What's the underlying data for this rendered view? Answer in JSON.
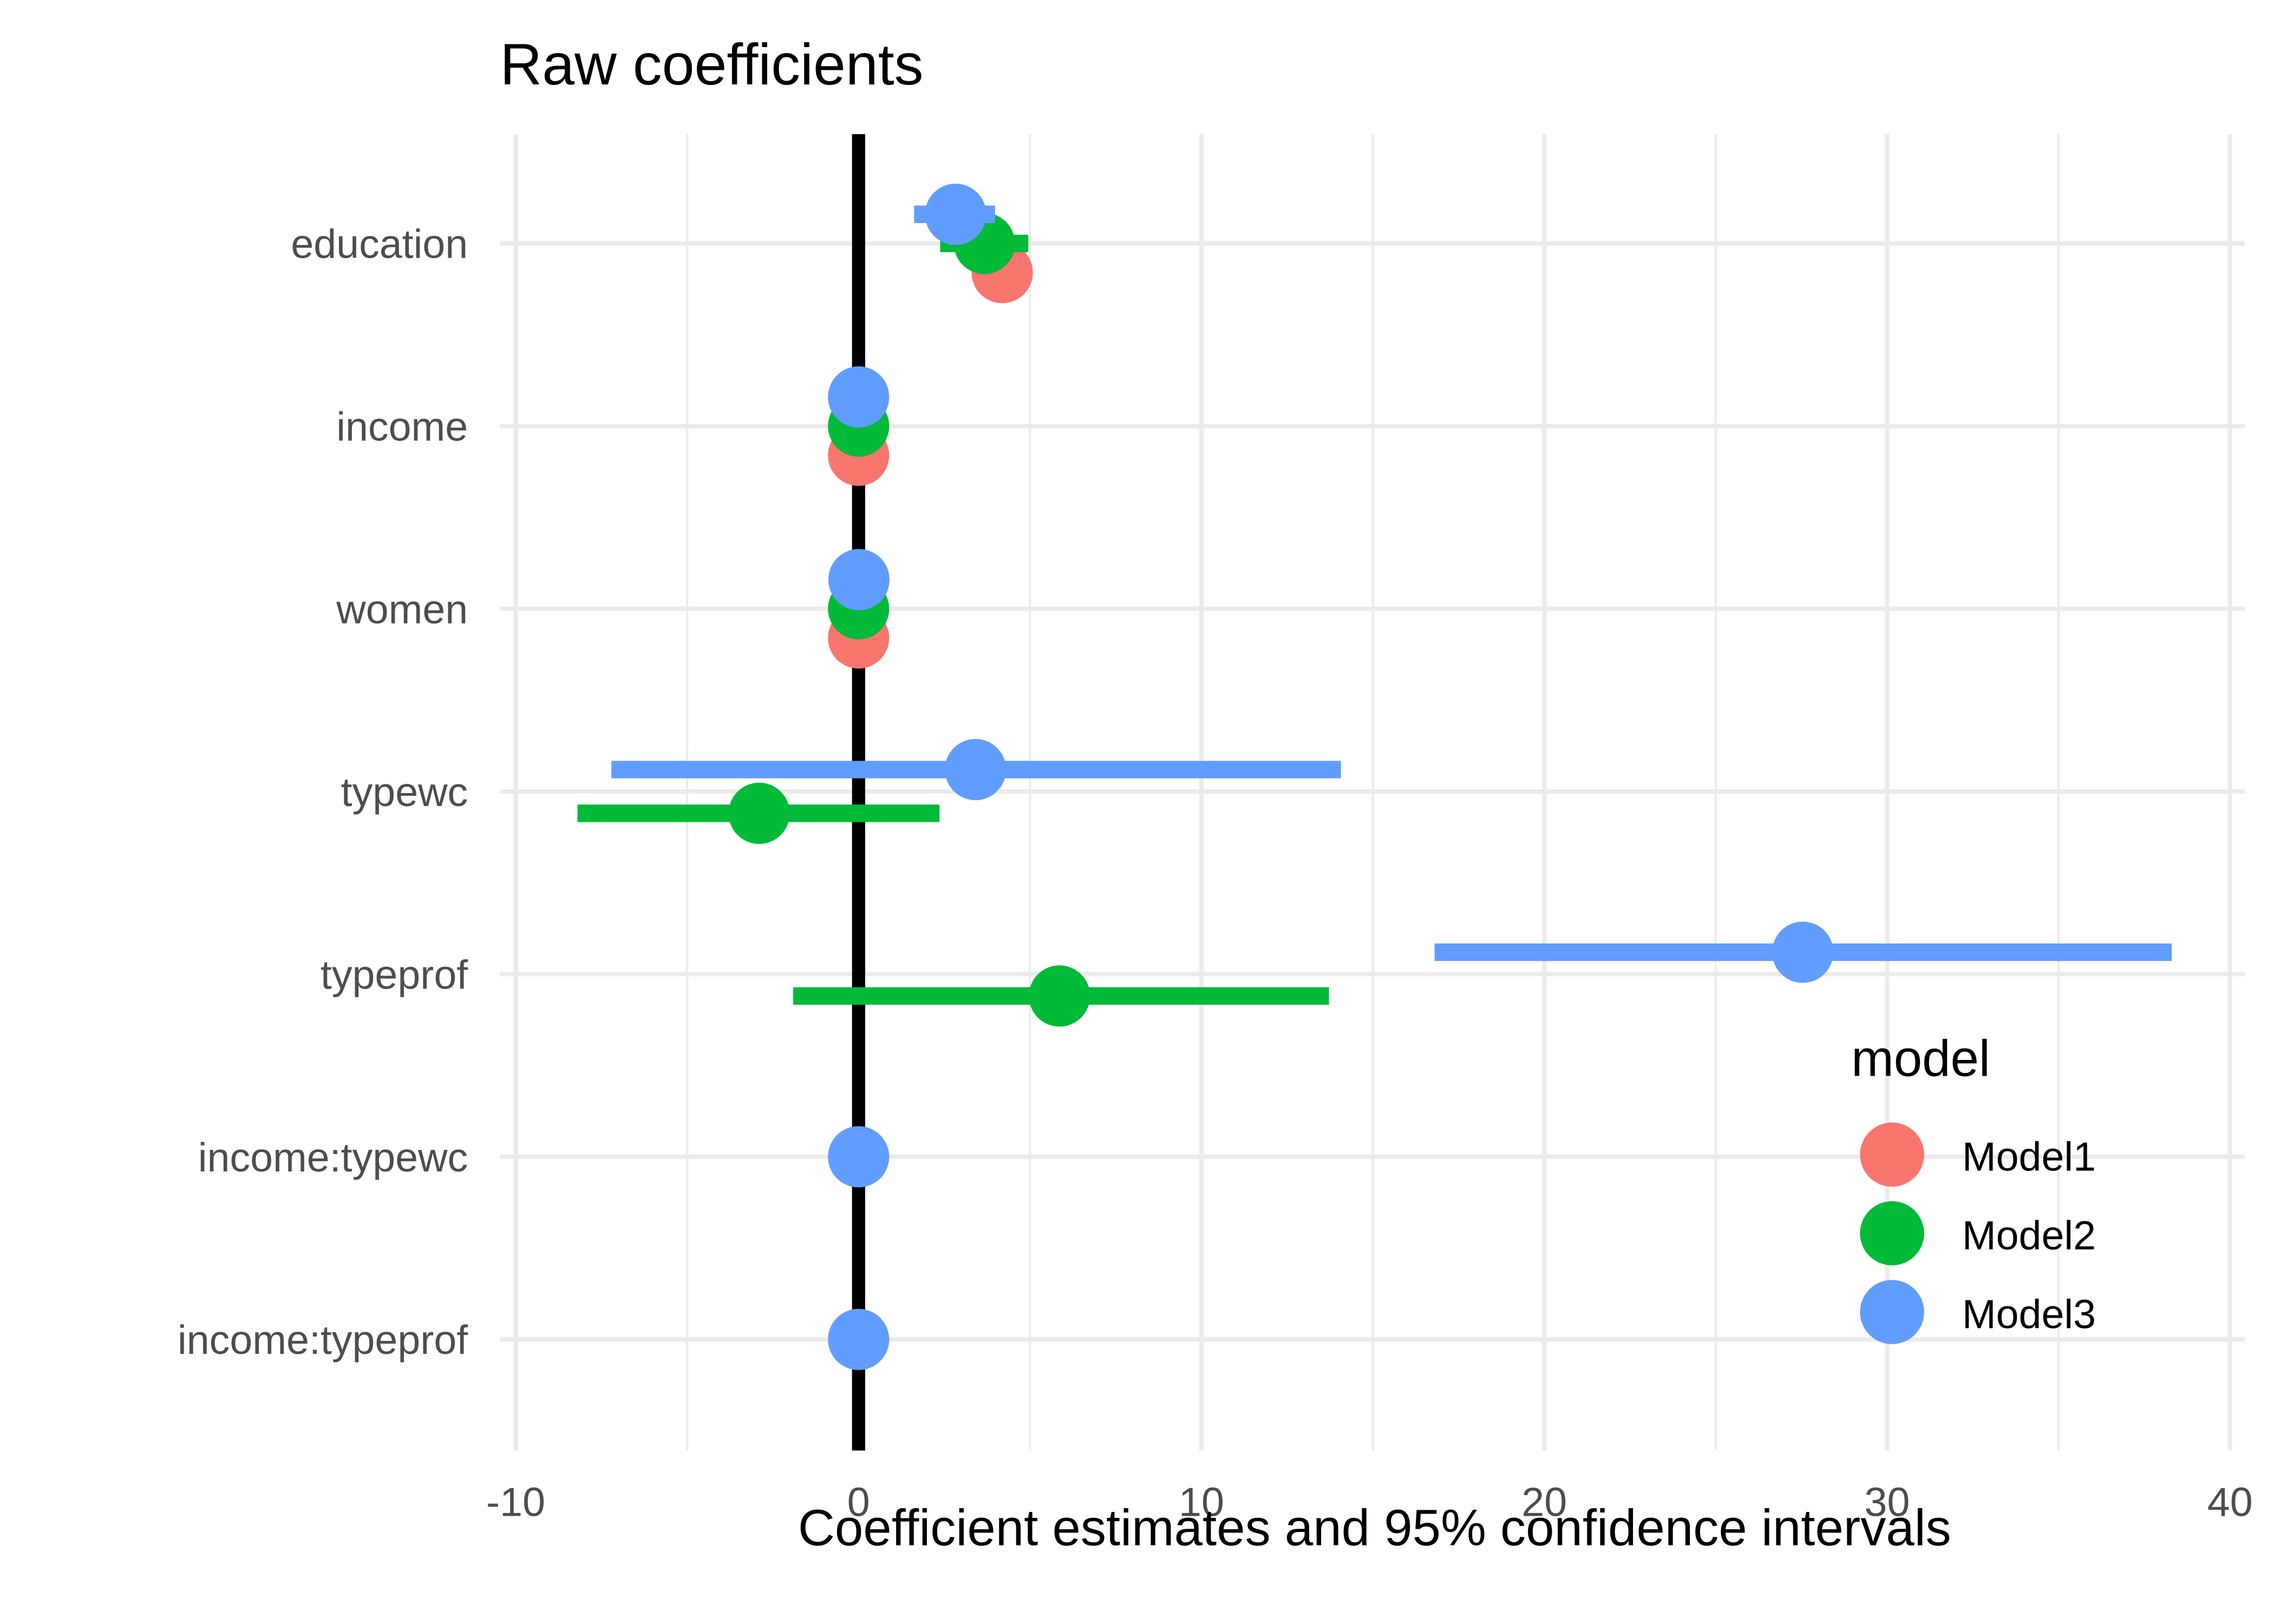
{
  "chart_data": {
    "type": "scatter",
    "subtype": "coefficient-plot",
    "title": "Raw coefficients",
    "xlabel": "Coefficient estimates and 95% confidence intervals",
    "ylabel": "",
    "xlim": [
      -10.5,
      40.5
    ],
    "x_ticks": [
      -10,
      0,
      10,
      20,
      30,
      40
    ],
    "x_tick_labels": [
      "-10",
      "0",
      "10",
      "20",
      "30",
      "40"
    ],
    "reference_line_x": 0,
    "grid": true,
    "categories": [
      "education",
      "income",
      "women",
      "typewc",
      "typeprof",
      "income:typewc",
      "income:typeprof"
    ],
    "legend": {
      "title": "model",
      "position": "right",
      "entries": [
        "Model1",
        "Model2",
        "Model3"
      ]
    },
    "series": [
      {
        "name": "Model1",
        "color": "#F8766D",
        "points": [
          {
            "term": "education",
            "estimate": 4.19,
            "low": 3.6,
            "high": 4.8
          },
          {
            "term": "income",
            "estimate": 0.0,
            "low": 0.0,
            "high": 0.0
          },
          {
            "term": "women",
            "estimate": 0.0,
            "low": -0.05,
            "high": 0.05
          }
        ]
      },
      {
        "name": "Model2",
        "color": "#00BA38",
        "points": [
          {
            "term": "education",
            "estimate": 3.67,
            "low": 2.38,
            "high": 4.95
          },
          {
            "term": "income",
            "estimate": 0.0,
            "low": 0.0,
            "high": 0.0
          },
          {
            "term": "women",
            "estimate": 0.0,
            "low": -0.05,
            "high": 0.05
          },
          {
            "term": "typewc",
            "estimate": -2.9,
            "low": -8.2,
            "high": 2.36
          },
          {
            "term": "typeprof",
            "estimate": 5.86,
            "low": -1.91,
            "high": 13.72
          }
        ]
      },
      {
        "name": "Model3",
        "color": "#619CFF",
        "points": [
          {
            "term": "education",
            "estimate": 2.83,
            "low": 1.62,
            "high": 3.98
          },
          {
            "term": "income",
            "estimate": 0.0,
            "low": 0.0,
            "high": 0.0
          },
          {
            "term": "women",
            "estimate": 0.01,
            "low": -0.05,
            "high": 0.07
          },
          {
            "term": "typewc",
            "estimate": 3.41,
            "low": -7.21,
            "high": 14.07
          },
          {
            "term": "typeprof",
            "estimate": 27.54,
            "low": 16.8,
            "high": 38.3
          },
          {
            "term": "income:typewc",
            "estimate": 0.0,
            "low": 0.0,
            "high": 0.0
          },
          {
            "term": "income:typeprof",
            "estimate": 0.0,
            "low": 0.0,
            "high": 0.0
          }
        ]
      }
    ]
  }
}
